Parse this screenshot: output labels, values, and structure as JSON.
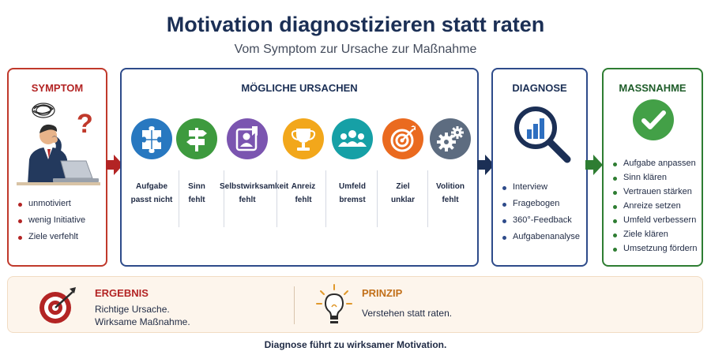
{
  "title": "Motivation diagnostizieren statt raten",
  "subtitle": "Vom Symptom zur Ursache zur Maßnahme",
  "colors": {
    "symptom": "#c0392b",
    "causes": "#2e4b8a",
    "measure": "#2e7d32",
    "result_bg": "#fdf5ec"
  },
  "symptom": {
    "heading": "SYMPTOM",
    "icon": "stressed-person-at-laptop",
    "items": [
      "unmotiviert",
      "wenig Initiative",
      "Ziele verfehlt"
    ]
  },
  "causes": {
    "heading": "MÖGLICHE URSACHEN",
    "items": [
      {
        "line1": "Aufgabe",
        "line2": "passt nicht",
        "icon": "puzzle-icon",
        "color": "#2878c0"
      },
      {
        "line1": "Sinn",
        "line2": "fehlt",
        "icon": "signpost-icon",
        "color": "#3d9a3e"
      },
      {
        "line1": "Selbstwirksamkeit",
        "line2": "fehlt",
        "icon": "person-badge-icon",
        "color": "#7b55b0"
      },
      {
        "line1": "Anreiz",
        "line2": "fehlt",
        "icon": "trophy-icon",
        "color": "#f2a71b"
      },
      {
        "line1": "Umfeld",
        "line2": "bremst",
        "icon": "group-icon",
        "color": "#16a0a6"
      },
      {
        "line1": "Ziel",
        "line2": "unklar",
        "icon": "target-icon",
        "color": "#ea6a1f"
      },
      {
        "line1": "Volition",
        "line2": "fehlt",
        "icon": "gears-icon",
        "color": "#5d6c80"
      }
    ]
  },
  "diagnosis": {
    "heading": "DIAGNOSE",
    "icon": "magnifier-chart-icon",
    "items": [
      "Interview",
      "Fragebogen",
      "360°-Feedback",
      "Aufgabenanalyse"
    ]
  },
  "measure": {
    "heading": "MASSNAHME",
    "icon": "check-circle-icon",
    "items": [
      "Aufgabe anpassen",
      "Sinn klären",
      "Vertrauen stärken",
      "Anreize setzen",
      "Umfeld verbessern",
      "Ziele klären",
      "Umsetzung fördern"
    ]
  },
  "result": {
    "heading": "ERGEBNIS",
    "line1": "Richtige Ursache.",
    "line2": "Wirksame Maßnahme.",
    "icon": "target-arrow-icon"
  },
  "principle": {
    "heading": "PRINZIP",
    "text": "Verstehen statt raten.",
    "icon": "lightbulb-icon"
  },
  "footer": "Diagnose führt zu wirksamer Motivation."
}
